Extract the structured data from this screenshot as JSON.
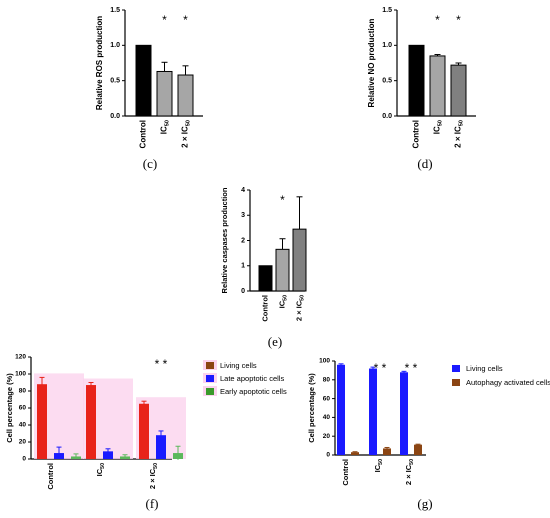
{
  "panel_labels": {
    "c": "(c)",
    "d": "(d)",
    "e": "(e)",
    "f": "(f)",
    "g": "(g)"
  },
  "chart_data": [
    {
      "id": "c",
      "type": "bar",
      "ylabel": "Relative ROS production",
      "ylim": [
        0,
        1.5
      ],
      "yticks": [
        "0.0",
        "0.5",
        "1.0",
        "1.5"
      ],
      "categories": [
        "Control",
        "IC50",
        "2 × IC50"
      ],
      "values": [
        1.0,
        0.63,
        0.58
      ],
      "errors": [
        0,
        0.13,
        0.13
      ],
      "colors": [
        "#000000",
        "#a6a6a6",
        "#a6a6a6"
      ],
      "stars": [
        "",
        "*",
        "*"
      ]
    },
    {
      "id": "d",
      "type": "bar",
      "ylabel": "Relative NO production",
      "ylim": [
        0,
        1.5
      ],
      "yticks": [
        "0.0",
        "0.5",
        "1.0",
        "1.5"
      ],
      "categories": [
        "Control",
        "IC50",
        "2 × IC50"
      ],
      "values": [
        1.0,
        0.85,
        0.72
      ],
      "errors": [
        0,
        0.02,
        0.03
      ],
      "colors": [
        "#000000",
        "#a6a6a6",
        "#808080"
      ],
      "stars": [
        "",
        "*",
        "*"
      ]
    },
    {
      "id": "e",
      "type": "bar",
      "ylabel": "Relative caspases production",
      "ylim": [
        0,
        4
      ],
      "yticks": [
        "0",
        "1",
        "2",
        "3",
        "4"
      ],
      "categories": [
        "Control",
        "IC50",
        "2 × IC50"
      ],
      "values": [
        1.0,
        1.65,
        2.45
      ],
      "errors": [
        0,
        0.42,
        1.28
      ],
      "colors": [
        "#000000",
        "#a6a6a6",
        "#808080"
      ],
      "stars": [
        "",
        "*",
        ""
      ]
    },
    {
      "id": "f",
      "type": "bar",
      "ylabel": "Cell percentage (%)",
      "ylim": [
        0,
        120
      ],
      "yticks": [
        "0",
        "20",
        "40",
        "60",
        "80",
        "100",
        "120"
      ],
      "categories": [
        "Control",
        "IC50",
        "2 × IC50"
      ],
      "series": [
        {
          "name": "Living cells",
          "values": [
            88,
            87,
            65
          ],
          "errors": [
            8,
            3,
            3
          ],
          "color": "#e8231a",
          "legend_color": "#8b4513"
        },
        {
          "name": "Late apoptotic cells",
          "values": [
            7,
            9,
            28
          ],
          "errors": [
            7,
            3,
            5
          ],
          "color": "#1a1aff",
          "legend_color": "#1a1aff"
        },
        {
          "name": "Early apoptotic cells",
          "values": [
            3,
            3,
            7
          ],
          "errors": [
            3,
            2,
            8
          ],
          "color": "#5cb85c",
          "legend_color": "#3a9a2a"
        }
      ],
      "stars": [
        "",
        "",
        "* *"
      ]
    },
    {
      "id": "g",
      "type": "bar",
      "ylabel": "Cell percentage (%)",
      "ylim": [
        0,
        100
      ],
      "yticks": [
        "0",
        "20",
        "40",
        "60",
        "80",
        "100"
      ],
      "categories": [
        "Control",
        "IC50",
        "2 × IC50"
      ],
      "series": [
        {
          "name": "Living cells",
          "values": [
            96,
            92,
            88
          ],
          "errors": [
            1,
            1.5,
            1
          ],
          "color": "#1a1aff",
          "legend_color": "#1a1aff"
        },
        {
          "name": "Autophagy activated cells",
          "values": [
            3,
            7,
            11
          ],
          "errors": [
            0.5,
            1,
            0.5
          ],
          "color": "#8b4513",
          "legend_color": "#8b4513"
        }
      ],
      "stars": [
        "",
        "* *",
        "* *"
      ]
    }
  ]
}
